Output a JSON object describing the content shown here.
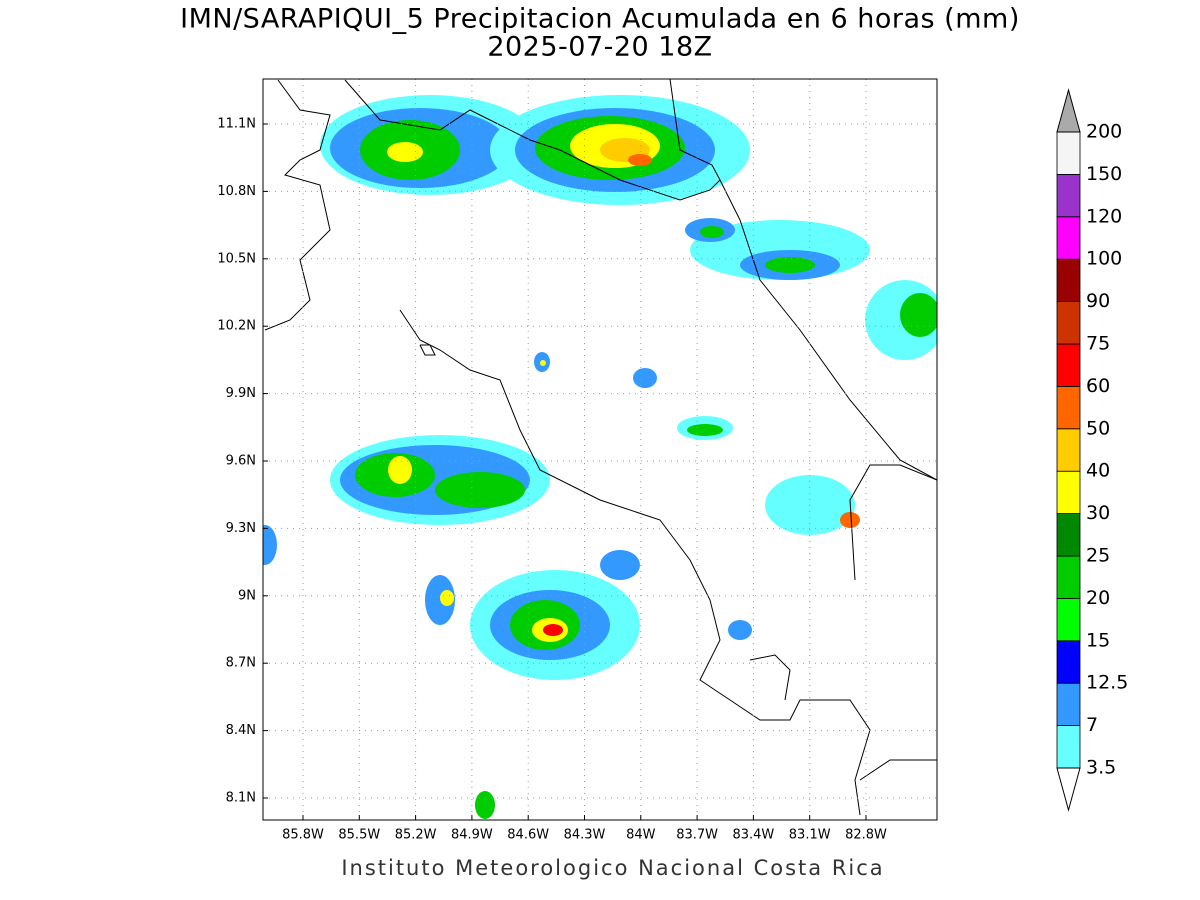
{
  "header": {
    "title": "IMN/SARAPIQUI_5 Precipitacion Acumulada en 6 horas (mm)",
    "subtitle": "2025-07-20 18Z"
  },
  "map": {
    "lon_labels": [
      "85.8W",
      "85.5W",
      "85.2W",
      "84.9W",
      "84.6W",
      "84.3W",
      "84W",
      "83.7W",
      "83.4W",
      "83.1W",
      "82.8W"
    ],
    "lat_labels": [
      "11.1N",
      "10.8N",
      "10.5N",
      "10.2N",
      "9.9N",
      "9.6N",
      "9.3N",
      "9N",
      "8.7N",
      "8.4N",
      "8.1N"
    ],
    "grid": true
  },
  "colorbar": {
    "levels": [
      3.5,
      7,
      12.5,
      15,
      20,
      25,
      30,
      40,
      50,
      60,
      75,
      90,
      100,
      120,
      150,
      200
    ],
    "colors": [
      "#66ffff",
      "#3399ff",
      "#0000ff",
      "#00ff00",
      "#00cc00",
      "#008800",
      "#ffff00",
      "#ffcc00",
      "#ff6600",
      "#ff0000",
      "#cc3300",
      "#990000",
      "#ff00ff",
      "#9933cc",
      "#f5f5f5"
    ],
    "under_color": "#ffffff",
    "over_color": "#aaaaaa"
  },
  "footer": "Instituto Meteorologico Nacional Costa Rica"
}
